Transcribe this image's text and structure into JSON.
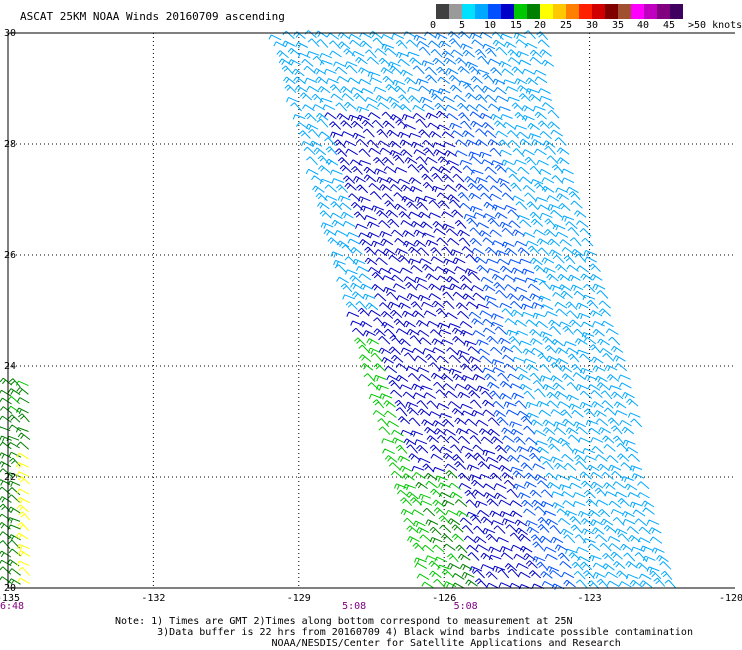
{
  "title": "ASCAT 25KM NOAA Winds 20160709 ascending",
  "colorbar": {
    "colors": [
      "#404040",
      "#9a9a9a",
      "#00e0ff",
      "#00a8ff",
      "#0050ff",
      "#0000c8",
      "#00c800",
      "#008000",
      "#ffff00",
      "#ffc800",
      "#ff8000",
      "#ff2000",
      "#d00000",
      "#800000",
      "#a05030",
      "#ff00ff",
      "#c000c0",
      "#800080",
      "#400060"
    ],
    "labels": [
      "0",
      "5",
      "10",
      "15",
      "20",
      "25",
      "30",
      "35",
      "40",
      "45",
      ">50 knots"
    ]
  },
  "map": {
    "lon_range": [
      -135,
      -120
    ],
    "lat_range": [
      20,
      30
    ],
    "lon_ticks": [
      "-135",
      "-132",
      "-129",
      "-126",
      "-123",
      "-120"
    ],
    "lat_ticks": [
      "30",
      "28",
      "26",
      "24",
      "22",
      "20"
    ]
  },
  "swath": {
    "colors": {
      "light": "#00a8ff",
      "dark": "#0000c8",
      "green": "#00c800",
      "dkgreen": "#008000",
      "yellow": "#ffff00"
    }
  },
  "times": [
    {
      "label": "6:48",
      "lon": -135
    },
    {
      "label": "5:08",
      "lon": -127.9
    },
    {
      "label": "5:08",
      "lon": -125.6
    }
  ],
  "notes": [
    "Note: 1) Times are GMT 2)Times along bottom correspond to measurement at 25N",
    "       3)Data buffer is 22 hrs from 20160709 4) Black wind barbs indicate possible contamination",
    "                          NOAA/NESDIS/Center for Satellite Applications and Research"
  ]
}
